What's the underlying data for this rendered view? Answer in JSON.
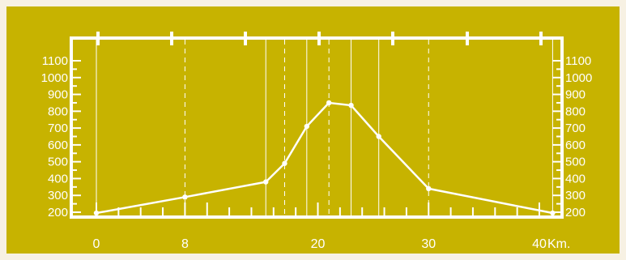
{
  "colors": {
    "background": "#c7b300",
    "outer": "#f7f1e3",
    "line": "#ffffff"
  },
  "chart_data": {
    "type": "line",
    "title": "",
    "xlabel": "",
    "ylabel": "",
    "x_unit_label": "Km.",
    "xlim": [
      0,
      41
    ],
    "ylim": [
      150,
      1150
    ],
    "x_tick_labels": [
      "0",
      "8",
      "20",
      "30",
      "40"
    ],
    "x_tick_values": [
      0,
      8,
      20,
      30,
      40
    ],
    "y_tick_labels": [
      "200",
      "300",
      "400",
      "500",
      "600",
      "700",
      "800",
      "900",
      "1000",
      "1100"
    ],
    "y_tick_values": [
      200,
      300,
      400,
      500,
      600,
      700,
      800,
      900,
      1000,
      1100
    ],
    "grid": false,
    "series": [
      {
        "x": [
          0,
          8,
          15.3,
          17,
          19,
          21,
          23,
          25.5,
          30,
          41.2
        ],
        "y": [
          195,
          290,
          380,
          490,
          710,
          850,
          835,
          650,
          340,
          195
        ]
      }
    ],
    "solid_guides_x": [
      15.3,
      19,
      23,
      25.5
    ],
    "dashed_guides_x": [
      8,
      17,
      21,
      30
    ]
  }
}
